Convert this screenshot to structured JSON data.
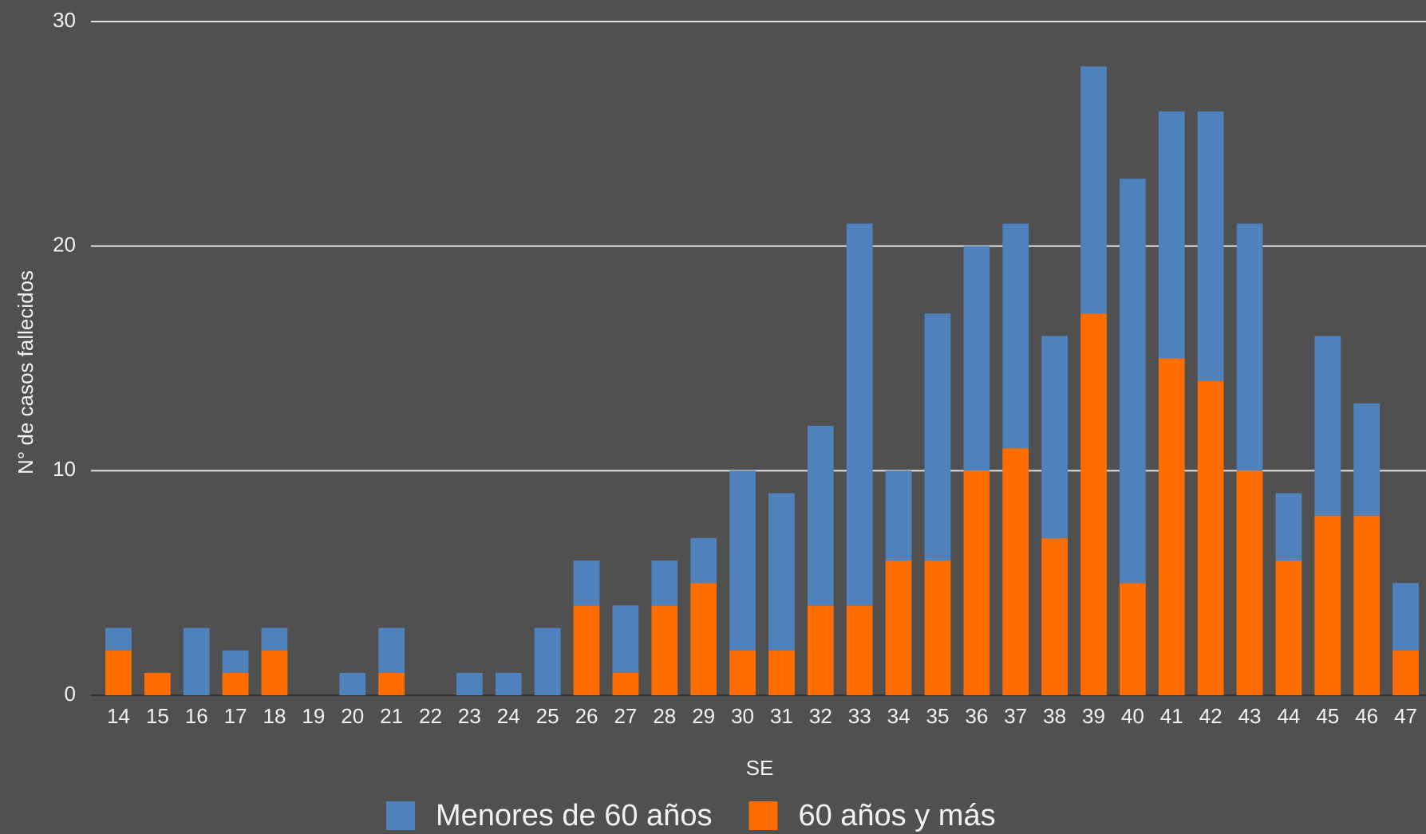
{
  "chart_data": {
    "type": "stacked_bar",
    "x_label": "SE",
    "y_label": "N° de casos fallecidos",
    "categories": [
      "14",
      "15",
      "16",
      "17",
      "18",
      "19",
      "20",
      "21",
      "22",
      "23",
      "24",
      "25",
      "26",
      "27",
      "28",
      "29",
      "30",
      "31",
      "32",
      "33",
      "34",
      "35",
      "36",
      "37",
      "38",
      "39",
      "40",
      "41",
      "42",
      "43",
      "44",
      "45",
      "46",
      "47"
    ],
    "series": [
      {
        "name": "60 años y más",
        "color": "#ff6d00",
        "values": [
          2,
          1,
          0,
          1,
          2,
          0,
          0,
          1,
          0,
          0,
          0,
          0,
          4,
          1,
          4,
          5,
          2,
          2,
          4,
          4,
          6,
          6,
          10,
          11,
          7,
          17,
          5,
          15,
          14,
          10,
          6,
          8,
          8,
          2
        ]
      },
      {
        "name": "Menores de 60 años",
        "color": "#4f81bd",
        "values": [
          1,
          0,
          3,
          1,
          1,
          0,
          1,
          2,
          0,
          1,
          1,
          3,
          2,
          3,
          2,
          2,
          8,
          7,
          8,
          17,
          4,
          11,
          10,
          10,
          9,
          11,
          18,
          11,
          12,
          11,
          3,
          8,
          5,
          3
        ]
      }
    ],
    "legend_order": [
      1,
      0
    ],
    "ylim": [
      0,
      30
    ],
    "yticks": [
      0,
      10,
      20,
      30
    ],
    "grid": true,
    "legend": "bottom"
  }
}
